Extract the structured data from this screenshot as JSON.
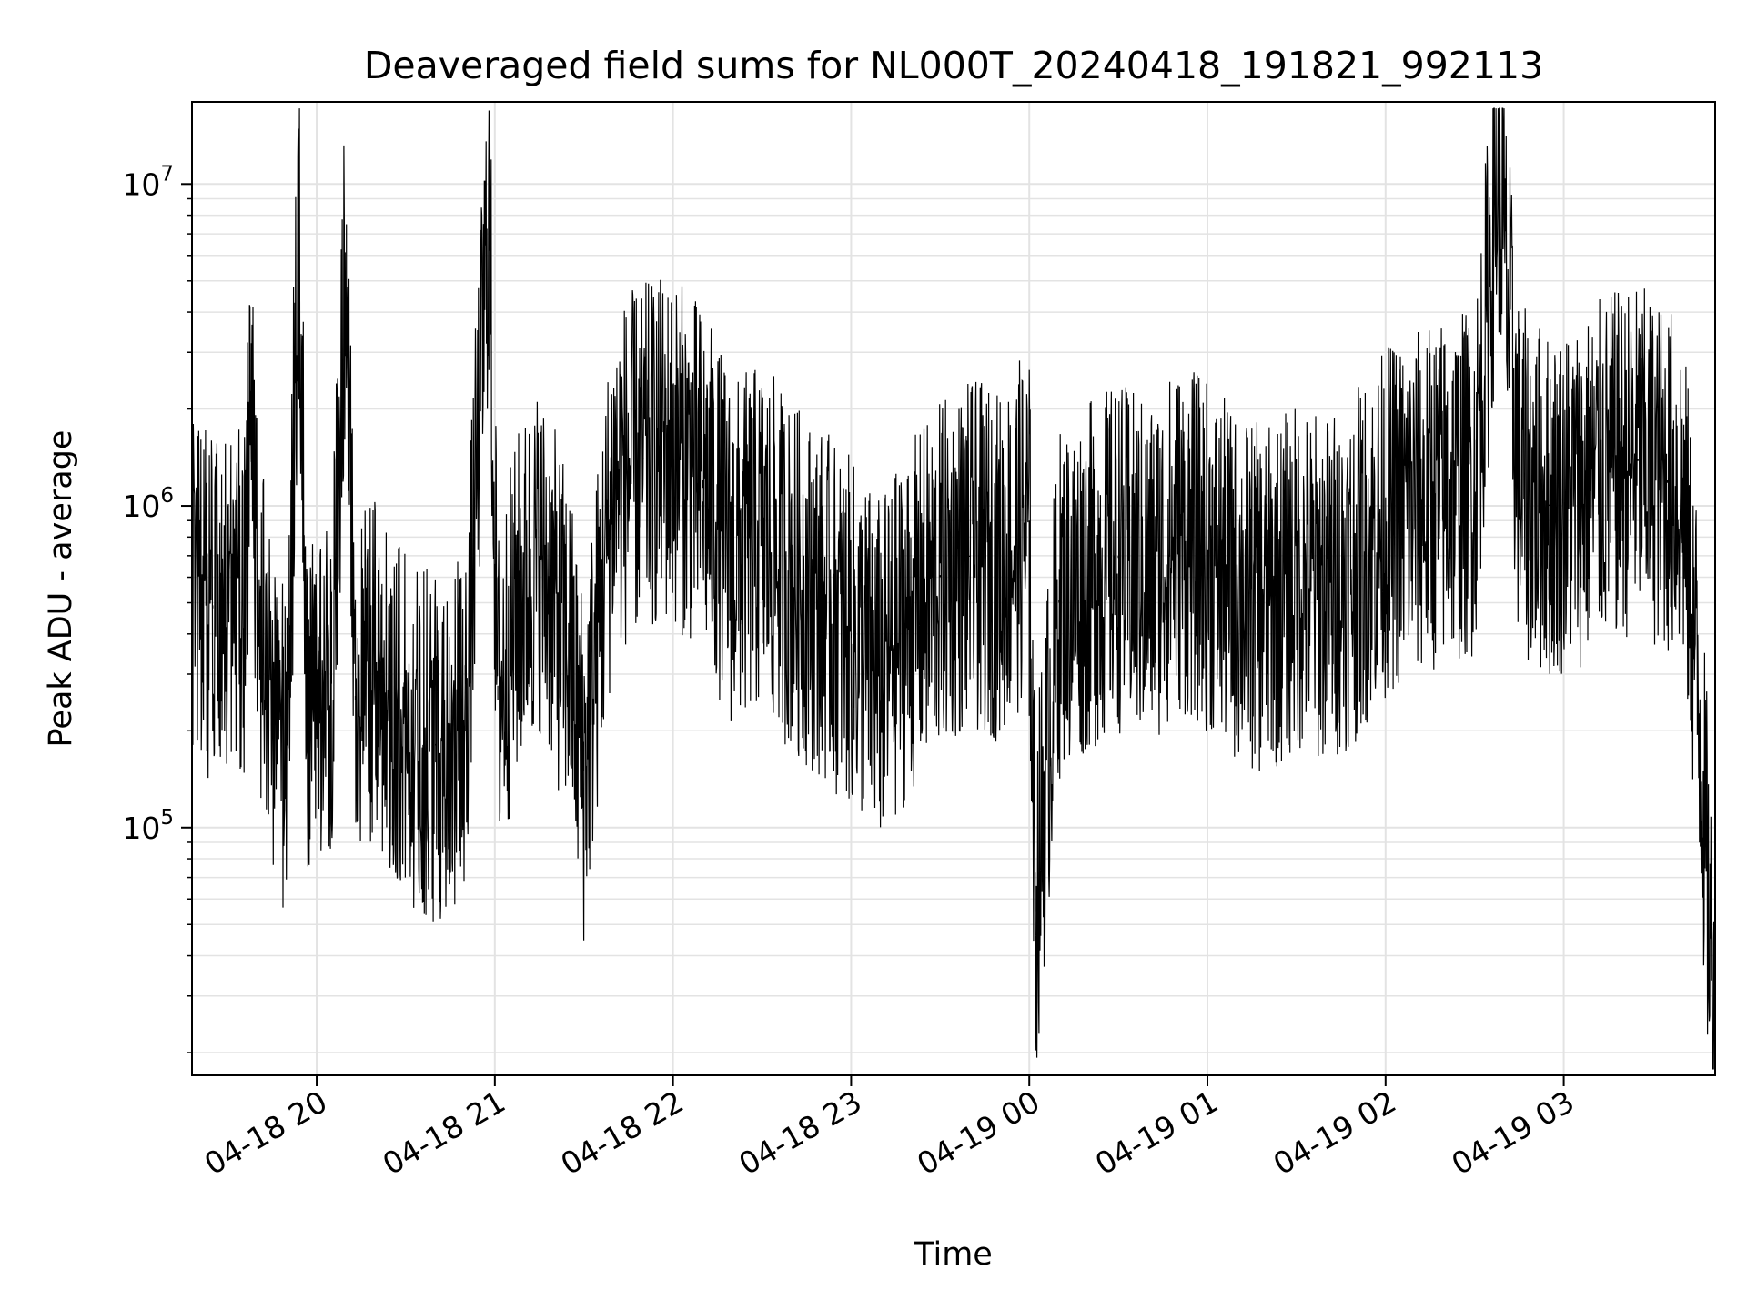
{
  "chart_data": {
    "type": "line",
    "title": "Deaveraged field sums for NL000T_20240418_191821_992113",
    "xlabel": "Time",
    "ylabel": "Peak ADU - average",
    "yscale": "log",
    "ylim": [
      17000,
      18000000
    ],
    "xlim": [
      "2024-04-18 19:18",
      "2024-04-19 03:51"
    ],
    "x_tick_labels": [
      "04-18 20",
      "04-18 21",
      "04-18 22",
      "04-18 23",
      "04-19 00",
      "04-19 01",
      "04-19 02",
      "04-19 03"
    ],
    "x_tick_times": [
      "2024-04-18 20:00",
      "2024-04-18 21:00",
      "2024-04-18 22:00",
      "2024-04-18 23:00",
      "2024-04-19 00:00",
      "2024-04-19 01:00",
      "2024-04-19 02:00",
      "2024-04-19 03:00"
    ],
    "y_ticks": [
      {
        "base": "10",
        "exp": "5",
        "value": 100000
      },
      {
        "base": "10",
        "exp": "6",
        "value": 1000000
      },
      {
        "base": "10",
        "exp": "7",
        "value": 10000000
      }
    ],
    "grid": true,
    "line_color": "#000000",
    "series": [
      {
        "x": [
          "2024-04-18 19:18",
          "2024-04-18 19:25",
          "2024-04-18 19:32",
          "2024-04-18 19:36",
          "2024-04-18 19:38",
          "2024-04-18 19:40",
          "2024-04-18 19:45",
          "2024-04-18 19:50",
          "2024-04-18 19:54",
          "2024-04-18 19:57",
          "2024-04-18 20:00",
          "2024-04-18 20:05",
          "2024-04-18 20:10",
          "2024-04-18 20:13",
          "2024-04-18 20:20",
          "2024-04-18 20:30",
          "2024-04-18 20:40",
          "2024-04-18 20:50",
          "2024-04-18 20:58",
          "2024-04-18 21:01",
          "2024-04-18 21:08",
          "2024-04-18 21:15",
          "2024-04-18 21:25",
          "2024-04-18 21:30",
          "2024-04-18 21:40",
          "2024-04-18 21:50",
          "2024-04-18 22:00",
          "2024-04-18 22:10",
          "2024-04-18 22:20",
          "2024-04-18 22:30",
          "2024-04-18 22:40",
          "2024-04-18 22:50",
          "2024-04-18 23:00",
          "2024-04-18 23:10",
          "2024-04-18 23:20",
          "2024-04-18 23:30",
          "2024-04-18 23:40",
          "2024-04-18 23:50",
          "2024-04-19 00:00",
          "2024-04-19 00:02",
          "2024-04-19 00:10",
          "2024-04-19 00:20",
          "2024-04-19 00:30",
          "2024-04-19 00:40",
          "2024-04-19 00:50",
          "2024-04-19 01:00",
          "2024-04-19 01:10",
          "2024-04-19 01:20",
          "2024-04-19 01:30",
          "2024-04-19 01:40",
          "2024-04-19 01:50",
          "2024-04-19 02:00",
          "2024-04-19 02:10",
          "2024-04-19 02:20",
          "2024-04-19 02:30",
          "2024-04-19 02:38",
          "2024-04-19 02:45",
          "2024-04-19 02:55",
          "2024-04-19 03:05",
          "2024-04-19 03:15",
          "2024-04-19 03:25",
          "2024-04-19 03:35",
          "2024-04-19 03:40",
          "2024-04-19 03:45",
          "2024-04-19 03:51"
        ],
        "y": [
          550000,
          480000,
          560000,
          520000,
          3200000,
          450000,
          250000,
          180000,
          7000000,
          200000,
          250000,
          280000,
          7500000,
          250000,
          300000,
          200000,
          180000,
          200000,
          8600000,
          250000,
          500000,
          700000,
          350000,
          150000,
          1200000,
          1400000,
          1500000,
          1200000,
          700000,
          800000,
          600000,
          500000,
          400000,
          300000,
          450000,
          600000,
          700000,
          650000,
          900000,
          55000,
          500000,
          600000,
          700000,
          600000,
          800000,
          700000,
          550000,
          500000,
          600000,
          550000,
          650000,
          900000,
          1000000,
          1100000,
          1200000,
          12000000,
          1200000,
          1000000,
          1100000,
          1300000,
          1400000,
          1200000,
          1100000,
          300000,
          22000
        ]
      }
    ]
  }
}
